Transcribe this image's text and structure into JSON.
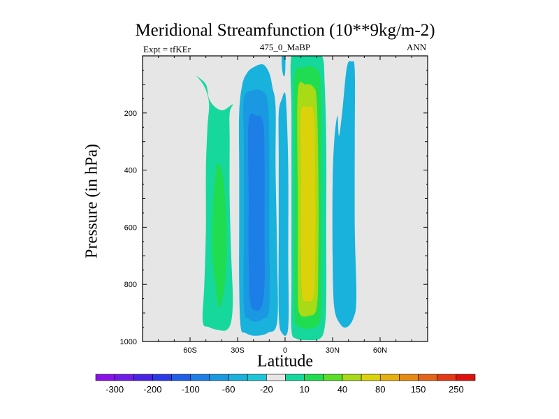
{
  "chart_data": {
    "type": "heatmap",
    "subtype": "filled-contour",
    "title": "Meridional Streamfunction (10**9kg/m-2)",
    "left_label": "Expt = tfKEr",
    "center_label": "475_0_MaBP",
    "right_label": "ANN",
    "xlabel": "Latitude",
    "ylabel": "Pressure (in hPa)",
    "xlim": [
      -90,
      90
    ],
    "ylim": [
      1000,
      0
    ],
    "y_inverted": true,
    "background_color": "#e6e6e6",
    "x_ticks": [
      {
        "value": -60,
        "label": "60S"
      },
      {
        "value": -30,
        "label": "30S"
      },
      {
        "value": 0,
        "label": "0"
      },
      {
        "value": 30,
        "label": "30N"
      },
      {
        "value": 60,
        "label": "60N"
      }
    ],
    "y_ticks": [
      {
        "value": 200,
        "label": "200"
      },
      {
        "value": 400,
        "label": "400"
      },
      {
        "value": 600,
        "label": "600"
      },
      {
        "value": 800,
        "label": "800"
      },
      {
        "value": 1000,
        "label": "1000"
      }
    ],
    "colorbar": {
      "levels": [
        "-300",
        "-200",
        "-100",
        "-60",
        "-20",
        "10",
        "40",
        "80",
        "150",
        "250"
      ],
      "colors": [
        "#8a12e8",
        "#6f1ce8",
        "#4a22e6",
        "#2a3ae8",
        "#1e5ee8",
        "#1c7ee6",
        "#1a98e2",
        "#18b2dc",
        "#1cc6d8",
        "#e6e6e6",
        "#16d89c",
        "#20dc50",
        "#5ade26",
        "#a8da16",
        "#dcd20c",
        "#e6b00e",
        "#e68a10",
        "#e4641a",
        "#e23a16",
        "#e0100e"
      ]
    },
    "regions": [
      {
        "name": "sh-subtropical-cell",
        "color": "#16d89c",
        "outline": [
          [
            -56,
            70
          ],
          [
            -53,
            90
          ],
          [
            -50,
            120
          ],
          [
            -48,
            170
          ],
          [
            -49,
            250
          ],
          [
            -50,
            400
          ],
          [
            -50,
            600
          ],
          [
            -51,
            800
          ],
          [
            -52,
            930
          ],
          [
            -48,
            950
          ],
          [
            -42,
            960
          ],
          [
            -37,
            960
          ],
          [
            -34,
            930
          ],
          [
            -33,
            850
          ],
          [
            -34,
            700
          ],
          [
            -35,
            500
          ],
          [
            -35,
            300
          ],
          [
            -35,
            200
          ],
          [
            -33,
            170
          ],
          [
            -39,
            190
          ],
          [
            -44,
            180
          ],
          [
            -48,
            150
          ],
          [
            -50,
            100
          ]
        ]
      },
      {
        "name": "sh-subtropical-cell-core",
        "color": "#20dc50",
        "outline": [
          [
            -43,
            380
          ],
          [
            -40,
            400
          ],
          [
            -38,
            480
          ],
          [
            -37,
            600
          ],
          [
            -37,
            700
          ],
          [
            -38,
            800
          ],
          [
            -40,
            860
          ],
          [
            -42,
            880
          ],
          [
            -44,
            800
          ],
          [
            -46,
            700
          ],
          [
            -46,
            600
          ],
          [
            -45,
            480
          ]
        ]
      },
      {
        "name": "sh-hadley-cell",
        "color": "#18b2dc",
        "outline": [
          [
            -27,
            100
          ],
          [
            -24,
            60
          ],
          [
            -20,
            40
          ],
          [
            -14,
            30
          ],
          [
            -10,
            60
          ],
          [
            -8,
            110
          ],
          [
            -6,
            180
          ],
          [
            -6,
            400
          ],
          [
            -5,
            700
          ],
          [
            -5,
            930
          ],
          [
            -11,
            970
          ],
          [
            -19,
            980
          ],
          [
            -25,
            970
          ],
          [
            -28,
            950
          ],
          [
            -29,
            800
          ],
          [
            -29,
            600
          ],
          [
            -29,
            400
          ],
          [
            -29,
            200
          ]
        ]
      },
      {
        "name": "sh-hadley-cell-mid",
        "color": "#1a98e2",
        "outline": [
          [
            -26,
            150
          ],
          [
            -20,
            120
          ],
          [
            -14,
            125
          ],
          [
            -11,
            160
          ],
          [
            -10,
            300
          ],
          [
            -10,
            600
          ],
          [
            -10,
            880
          ],
          [
            -14,
            920
          ],
          [
            -19,
            930
          ],
          [
            -23,
            920
          ],
          [
            -26,
            880
          ],
          [
            -26,
            600
          ],
          [
            -26,
            300
          ]
        ]
      },
      {
        "name": "sh-hadley-cell-core",
        "color": "#1c7ee6",
        "outline": [
          [
            -23,
            230
          ],
          [
            -18,
            210
          ],
          [
            -14,
            230
          ],
          [
            -13,
            350
          ],
          [
            -13,
            600
          ],
          [
            -13,
            800
          ],
          [
            -15,
            880
          ],
          [
            -19,
            890
          ],
          [
            -22,
            860
          ],
          [
            -23,
            700
          ],
          [
            -23,
            500
          ]
        ]
      },
      {
        "name": "equatorial-weak-cell",
        "color": "#18b2dc",
        "outline": [
          [
            -4,
            200
          ],
          [
            -2,
            150
          ],
          [
            0,
            130
          ],
          [
            1,
            200
          ],
          [
            2,
            400
          ],
          [
            2,
            700
          ],
          [
            2,
            950
          ],
          [
            -2,
            970
          ],
          [
            -4,
            900
          ],
          [
            -4,
            600
          ],
          [
            -4,
            350
          ]
        ]
      },
      {
        "name": "equatorial-thin-filament",
        "color": "#18b2dc",
        "outline": [
          [
            -2,
            0
          ],
          [
            0,
            0
          ],
          [
            0,
            60
          ],
          [
            -1,
            70
          ],
          [
            -2,
            40
          ]
        ]
      },
      {
        "name": "nh-hadley-cell",
        "color": "#16d89c",
        "outline": [
          [
            4,
            0
          ],
          [
            12,
            0
          ],
          [
            20,
            0
          ],
          [
            24,
            10
          ],
          [
            25,
            100
          ],
          [
            26,
            300
          ],
          [
            26,
            600
          ],
          [
            26,
            850
          ],
          [
            25,
            950
          ],
          [
            22,
            990
          ],
          [
            14,
            995
          ],
          [
            7,
            990
          ],
          [
            4,
            960
          ],
          [
            4,
            800
          ],
          [
            4,
            500
          ],
          [
            4,
            200
          ]
        ]
      },
      {
        "name": "nh-hadley-cell-mid",
        "color": "#20dc50",
        "outline": [
          [
            6,
            70
          ],
          [
            12,
            40
          ],
          [
            18,
            40
          ],
          [
            22,
            70
          ],
          [
            23,
            200
          ],
          [
            23,
            500
          ],
          [
            23,
            800
          ],
          [
            22,
            930
          ],
          [
            15,
            955
          ],
          [
            8,
            945
          ],
          [
            6,
            900
          ],
          [
            6,
            600
          ],
          [
            6,
            300
          ]
        ]
      },
      {
        "name": "nh-hadley-cell-inner",
        "color": "#a8da16",
        "outline": [
          [
            8,
            130
          ],
          [
            13,
            100
          ],
          [
            18,
            110
          ],
          [
            20,
            160
          ],
          [
            21,
            400
          ],
          [
            21,
            700
          ],
          [
            20,
            880
          ],
          [
            15,
            910
          ],
          [
            9,
            900
          ],
          [
            8,
            800
          ],
          [
            8,
            500
          ]
        ]
      },
      {
        "name": "nh-hadley-cell-core",
        "color": "#dcd20c",
        "outline": [
          [
            10,
            200
          ],
          [
            14,
            180
          ],
          [
            18,
            200
          ],
          [
            19,
            400
          ],
          [
            19,
            700
          ],
          [
            18,
            840
          ],
          [
            14,
            860
          ],
          [
            11,
            840
          ],
          [
            10,
            700
          ],
          [
            10,
            400
          ]
        ]
      },
      {
        "name": "nh-ferrel-cell",
        "color": "#18b2dc",
        "outline": [
          [
            33,
            210
          ],
          [
            34,
            280
          ],
          [
            36,
            200
          ],
          [
            39,
            40
          ],
          [
            42,
            20
          ],
          [
            44,
            50
          ],
          [
            44,
            300
          ],
          [
            44,
            600
          ],
          [
            45,
            850
          ],
          [
            43,
            920
          ],
          [
            39,
            950
          ],
          [
            35,
            940
          ],
          [
            31,
            880
          ],
          [
            30,
            700
          ],
          [
            30,
            450
          ],
          [
            31,
            300
          ]
        ]
      }
    ]
  }
}
